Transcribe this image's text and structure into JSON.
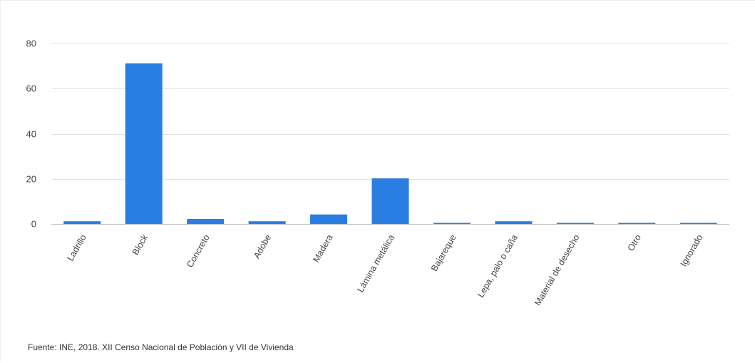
{
  "chart_data": {
    "type": "bar",
    "categories": [
      "Ladrillo",
      "Block",
      "Concreto",
      "Adobe",
      "Madera",
      "Lámina metálica",
      "Bajareque",
      "Lepa, palo o caña",
      "Material de desecho",
      "Otro",
      "Ignorado"
    ],
    "values": [
      1.2,
      71.2,
      2.2,
      1.2,
      4.2,
      20.2,
      0.4,
      1.2,
      0.4,
      0.4,
      0.4
    ],
    "title": "",
    "xlabel": "",
    "ylabel": "",
    "ylim": [
      0,
      80
    ],
    "yticks": [
      0,
      20,
      40,
      60,
      80
    ],
    "grid": true,
    "legend": "none",
    "bar_color": "#2a7de1",
    "gridline_color": "#e0e0e0",
    "baseline_color": "#bdbdbd"
  },
  "footer": {
    "source": "Fuente: INE, 2018. XII Censo Nacional de Población y VII de Vivienda"
  }
}
